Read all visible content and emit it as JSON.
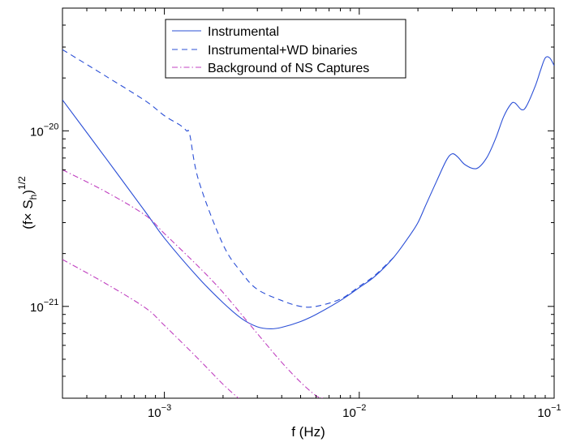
{
  "chart_data": {
    "type": "line",
    "title": "",
    "xlabel": "f (Hz)",
    "ylabel_main": "(f× S",
    "ylabel_sub": "h",
    "ylabel_close": ")",
    "ylabel_sup": "1/2",
    "xscale": "log",
    "yscale": "log",
    "xlim": [
      0.0003,
      0.1
    ],
    "ylim": [
      3e-22,
      5e-20
    ],
    "grid": false,
    "legend_position": "top-center",
    "x_ticks": [
      {
        "value": 0.001,
        "base": "10",
        "exp": "−3"
      },
      {
        "value": 0.01,
        "base": "10",
        "exp": "−2"
      },
      {
        "value": 0.1,
        "base": "10",
        "exp": "−1"
      }
    ],
    "y_ticks": [
      {
        "value": 1e-20,
        "base": "10",
        "exp": "−20"
      },
      {
        "value": 1e-21,
        "base": "10",
        "exp": "−21"
      }
    ],
    "series": [
      {
        "name": "Instrumental",
        "color": "#2b4fd6",
        "style": "solid",
        "x": [
          0.0003,
          0.0005,
          0.0008,
          0.001,
          0.0015,
          0.002,
          0.0025,
          0.003,
          0.0035,
          0.004,
          0.005,
          0.006,
          0.008,
          0.01,
          0.012,
          0.015,
          0.018,
          0.02,
          0.022,
          0.025,
          0.028,
          0.03,
          0.032,
          0.035,
          0.04,
          0.045,
          0.05,
          0.055,
          0.06,
          0.063,
          0.068,
          0.072,
          0.08,
          0.085,
          0.09,
          0.095,
          0.1
        ],
        "y": [
          1.5e-20,
          7e-21,
          3.45e-21,
          2.45e-21,
          1.45e-21,
          1.05e-21,
          8.5e-22,
          7.65e-22,
          7.45e-22,
          7.6e-22,
          8.2e-22,
          9e-22,
          1.08e-21,
          1.28e-21,
          1.48e-21,
          1.9e-21,
          2.5e-21,
          3e-21,
          3.8e-21,
          5.2e-21,
          6.8e-21,
          7.4e-21,
          7.1e-21,
          6.4e-21,
          6.1e-21,
          7e-21,
          9e-21,
          1.2e-20,
          1.42e-20,
          1.44e-20,
          1.32e-20,
          1.38e-20,
          1.8e-20,
          2.2e-20,
          2.6e-20,
          2.6e-20,
          2.35e-20
        ]
      },
      {
        "name": "Instrumental+WD binaries",
        "color": "#2b4fd6",
        "style": "dashed",
        "x": [
          0.0003,
          0.0005,
          0.0008,
          0.001,
          0.0012,
          0.0013,
          0.00135,
          0.0015,
          0.002,
          0.0025,
          0.003,
          0.004,
          0.005,
          0.006,
          0.008,
          0.01,
          0.012,
          0.015
        ],
        "y": [
          2.9e-20,
          2.05e-20,
          1.48e-20,
          1.22e-20,
          1.08e-20,
          1e-20,
          9.5e-21,
          5.2e-21,
          2.25e-21,
          1.55e-21,
          1.25e-21,
          1.08e-21,
          1e-21,
          1e-21,
          1.1e-21,
          1.3e-21,
          1.5e-21,
          1.9e-21
        ]
      },
      {
        "name": "Background of NS Captures",
        "color": "#c040c0",
        "style": "dashdot",
        "x": [
          0.0003,
          0.0005,
          0.0008,
          0.001,
          0.0015,
          0.002,
          0.003,
          0.004,
          0.005,
          0.006,
          0.0065
        ],
        "y": [
          6e-21,
          4.5e-21,
          3.3e-21,
          2.6e-21,
          1.68e-21,
          1.2e-21,
          7e-22,
          4.8e-22,
          3.7e-22,
          3.1e-22,
          3e-22
        ]
      },
      {
        "name": "",
        "color": "#c040c0",
        "style": "dashdot",
        "x": [
          0.0003,
          0.0005,
          0.0008,
          0.001,
          0.0015,
          0.002,
          0.0024
        ],
        "y": [
          1.85e-21,
          1.35e-21,
          9.8e-22,
          7.8e-22,
          5e-22,
          3.6e-22,
          3e-22
        ]
      }
    ]
  }
}
